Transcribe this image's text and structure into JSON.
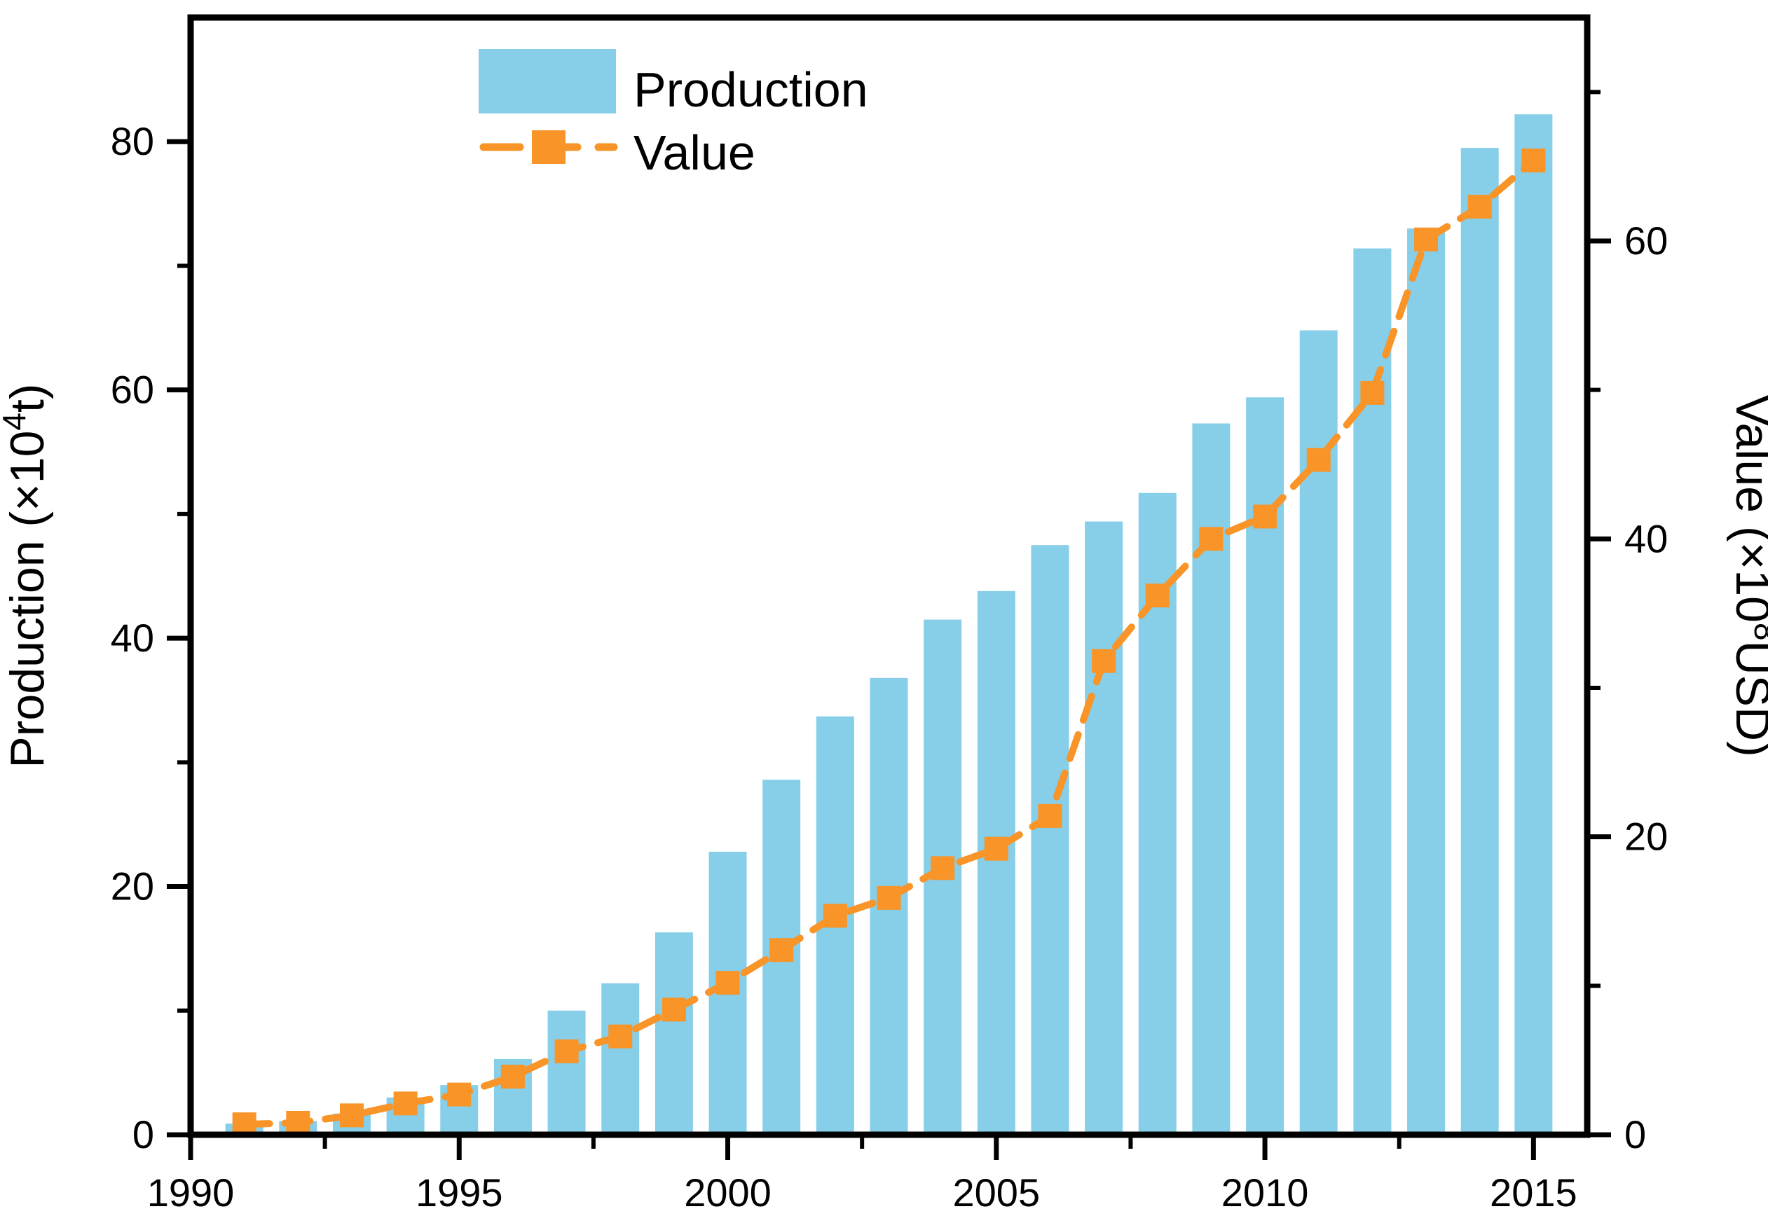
{
  "figure": {
    "background": "#FFFFFF",
    "colors": {
      "production_bar": "#87CEE8",
      "value_line": "#F89428",
      "axis": "#000000"
    },
    "legend": [
      {
        "label": "Production",
        "type": "bar"
      },
      {
        "label": "Value",
        "type": "line"
      }
    ],
    "left_axis": {
      "title_pre": "Production (×10",
      "title_sup": "4",
      "title_post": "t)",
      "ticks": [
        0,
        20,
        40,
        60,
        80
      ],
      "minor_ticks": [
        10,
        30,
        50,
        70
      ],
      "lim": [
        0,
        90
      ]
    },
    "right_axis": {
      "title_pre": "Value (×10",
      "title_sup": "8",
      "title_post": "USD)",
      "ticks": [
        0,
        20,
        40,
        60
      ],
      "minor_ticks": [
        10,
        30,
        50,
        70
      ],
      "lim": [
        0,
        75
      ]
    },
    "x_axis": {
      "ticks": [
        1990,
        1995,
        2000,
        2005,
        2010,
        2015
      ],
      "minor_ticks": [
        1992.5,
        1997.5,
        2002.5,
        2007.5,
        2012.5
      ],
      "range": [
        1990,
        2016
      ]
    }
  },
  "chart_data": {
    "type": "bar+line",
    "title": "",
    "xlabel": "",
    "x": [
      1991,
      1992,
      1993,
      1994,
      1995,
      1996,
      1997,
      1998,
      1999,
      2000,
      2001,
      2002,
      2003,
      2004,
      2005,
      2006,
      2007,
      2008,
      2009,
      2010,
      2011,
      2012,
      2013,
      2014,
      2015
    ],
    "series": [
      {
        "name": "Production",
        "axis": "left",
        "unit": "×10⁴t",
        "type": "bar",
        "values": [
          0.9,
          1.1,
          1.7,
          3.0,
          4.0,
          6.1,
          10.0,
          12.2,
          16.3,
          22.8,
          28.6,
          33.7,
          36.8,
          41.5,
          43.8,
          47.5,
          49.4,
          51.7,
          57.3,
          59.4,
          64.8,
          71.4,
          73.0,
          79.5,
          82.2
        ]
      },
      {
        "name": "Value",
        "axis": "right",
        "unit": "×10⁸USD",
        "type": "line",
        "values": [
          0.7,
          0.8,
          1.3,
          2.1,
          2.7,
          3.9,
          5.6,
          6.6,
          8.4,
          10.2,
          12.4,
          14.7,
          15.9,
          17.9,
          19.2,
          21.4,
          31.8,
          36.2,
          40.0,
          41.5,
          45.3,
          49.8,
          60.1,
          62.3,
          65.4
        ]
      }
    ],
    "left_ylim": [
      0,
      90
    ],
    "right_ylim": [
      0,
      75
    ],
    "grid": false,
    "legend_position": "top-center-inside"
  }
}
